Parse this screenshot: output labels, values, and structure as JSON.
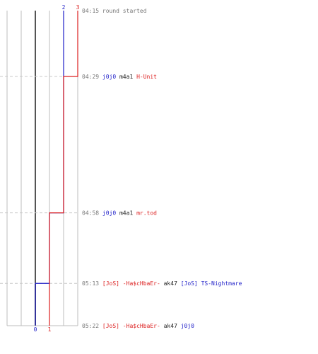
{
  "chart_data": {
    "type": "line",
    "colors": {
      "blue": "#1e1ec8",
      "red": "#dc1e1e",
      "grid": "#bdbdbd",
      "zero": "#555555",
      "dash": "#c8c8c8",
      "time": "#777777",
      "text": "#222222"
    },
    "y_axis": {
      "top_label": "04:15",
      "bottom_label": "05:22",
      "min_seconds": 255,
      "max_seconds": 322
    },
    "x_axis": {
      "min": -2,
      "max": 3
    },
    "series": [
      {
        "color": "#1e1ec8",
        "values": [
          2,
          2,
          1,
          0
        ],
        "end_labels": {
          "top": "2",
          "bottom": "0"
        }
      },
      {
        "color": "#dc1e1e",
        "values": [
          3,
          2,
          1,
          1
        ],
        "end_labels": {
          "top": "3",
          "bottom": "1"
        }
      }
    ],
    "events": [
      {
        "time": "04:15",
        "seconds": 255,
        "parts": [
          {
            "text": "round started",
            "color": "#777777"
          }
        ],
        "dashed": false
      },
      {
        "time": "04:29",
        "seconds": 269,
        "parts": [
          {
            "text": "j0j0",
            "color": "#1e1ec8"
          },
          {
            "text": " m4a1 ",
            "color": "#222222"
          },
          {
            "text": "H-Unit",
            "color": "#dc1e1e"
          }
        ],
        "dashed": true
      },
      {
        "time": "04:58",
        "seconds": 298,
        "parts": [
          {
            "text": "j0j0",
            "color": "#1e1ec8"
          },
          {
            "text": " m4a1 ",
            "color": "#222222"
          },
          {
            "text": "mr.tod",
            "color": "#dc1e1e"
          }
        ],
        "dashed": true
      },
      {
        "time": "05:13",
        "seconds": 313,
        "parts": [
          {
            "text": "[JoS] -Ha$cHbaEr-",
            "color": "#dc1e1e"
          },
          {
            "text": " ak47 ",
            "color": "#222222"
          },
          {
            "text": "[JoS] TS-Nightmare",
            "color": "#1e1ec8"
          }
        ],
        "dashed": true
      },
      {
        "time": "05:22",
        "seconds": 322,
        "parts": [
          {
            "text": "[JoS] -Ha$cHbaEr-",
            "color": "#dc1e1e"
          },
          {
            "text": " ak47 ",
            "color": "#222222"
          },
          {
            "text": "j0j0",
            "color": "#1e1ec8"
          }
        ],
        "dashed": false
      }
    ]
  }
}
